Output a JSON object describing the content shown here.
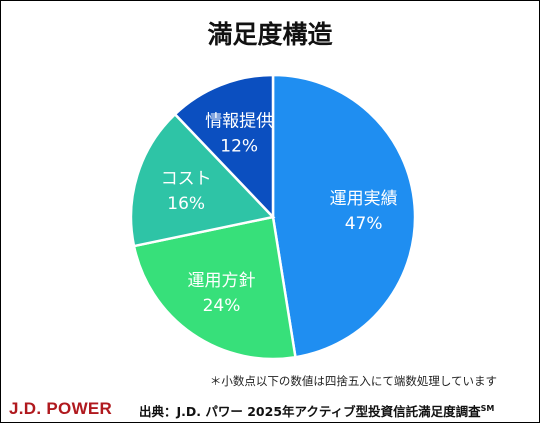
{
  "chart_data": {
    "type": "pie",
    "title": "満足度構造",
    "slices": [
      {
        "label": "運用実績",
        "value": 47,
        "value_label": "47%",
        "color": "#1f8ef1"
      },
      {
        "label": "運用方針",
        "value": 24,
        "value_label": "24%",
        "color": "#37e07a"
      },
      {
        "label": "コスト",
        "value": 16,
        "value_label": "16%",
        "color": "#2ec4a6"
      },
      {
        "label": "情報提供",
        "value": 12,
        "value_label": "12%",
        "color": "#0b4fc0"
      }
    ]
  },
  "footnote": "＊小数点以下の数値は四捨五入にて端数処理しています",
  "brand": {
    "name": "J.D. POWER",
    "color": "#b0191e"
  },
  "source": {
    "text": "出典：J.D. パワー 2025年アクティブ型投資信託満足度調査",
    "mark": "SM"
  }
}
